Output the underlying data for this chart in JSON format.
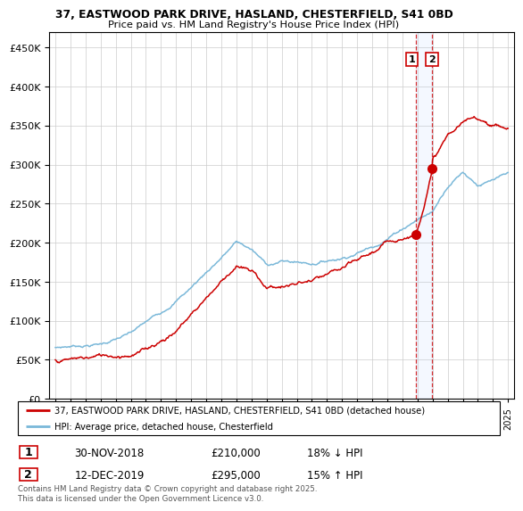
{
  "title_line1": "37, EASTWOOD PARK DRIVE, HASLAND, CHESTERFIELD, S41 0BD",
  "title_line2": "Price paid vs. HM Land Registry's House Price Index (HPI)",
  "legend_label1": "37, EASTWOOD PARK DRIVE, HASLAND, CHESTERFIELD, S41 0BD (detached house)",
  "legend_label2": "HPI: Average price, detached house, Chesterfield",
  "transaction1_date": "30-NOV-2018",
  "transaction1_price": "£210,000",
  "transaction1_hpi": "18% ↓ HPI",
  "transaction2_date": "12-DEC-2019",
  "transaction2_price": "£295,000",
  "transaction2_hpi": "15% ↑ HPI",
  "footer": "Contains HM Land Registry data © Crown copyright and database right 2025.\nThis data is licensed under the Open Government Licence v3.0.",
  "hpi_color": "#7ab8d9",
  "price_color": "#cc0000",
  "vline_color": "#cc0000",
  "background_color": "#ffffff",
  "grid_color": "#cccccc",
  "ylim": [
    0,
    470000
  ],
  "xlim_start": 1994.6,
  "xlim_end": 2025.4,
  "transaction1_year": 2018.92,
  "transaction2_year": 2019.96,
  "t1_price_val": 210000,
  "t2_price_val": 295000
}
